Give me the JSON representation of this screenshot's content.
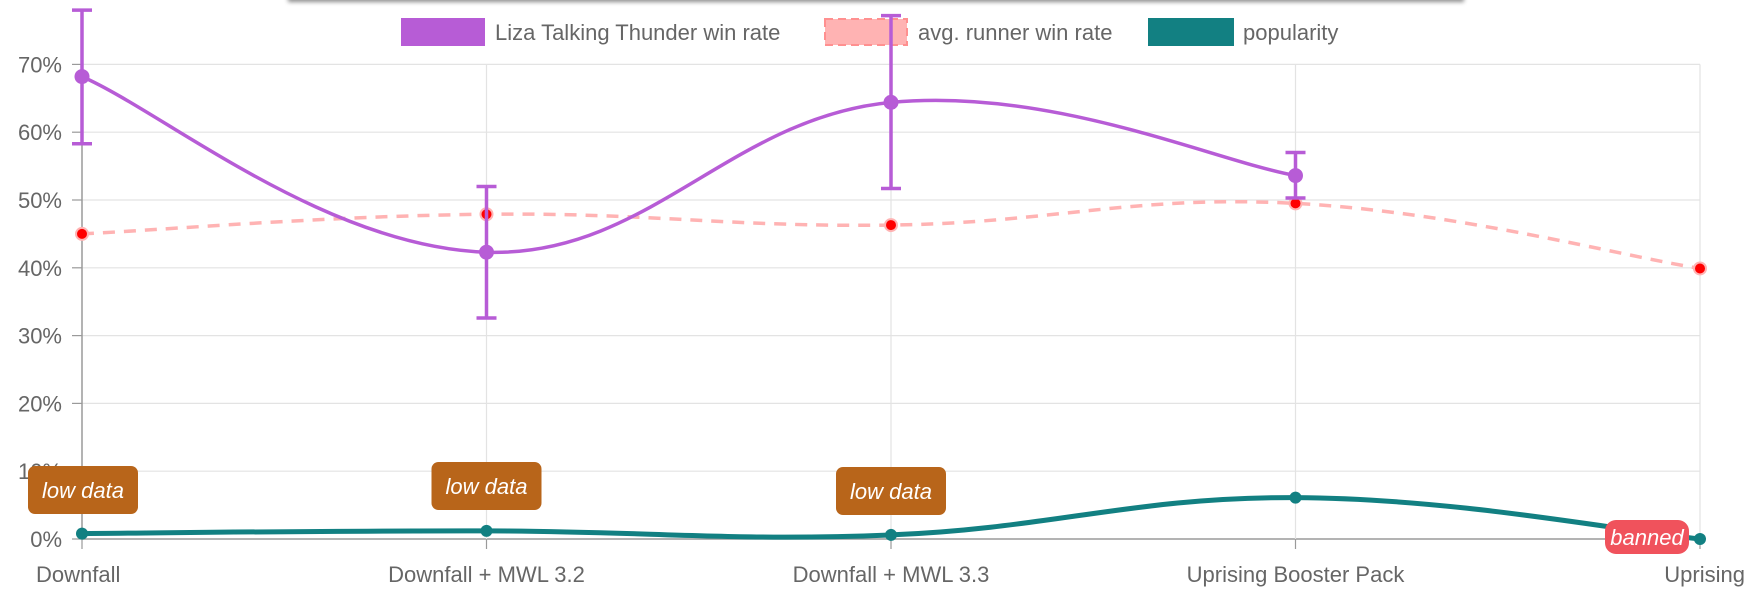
{
  "chart_data": {
    "type": "line",
    "categories": [
      "Downfall",
      "Downfall + MWL 3.2",
      "Downfall + MWL 3.3",
      "Uprising Booster Pack",
      "Uprising"
    ],
    "ylim": [
      0,
      70
    ],
    "y_ticks": [
      "0%",
      "10%",
      "20%",
      "30%",
      "40%",
      "50%",
      "60%",
      "70%"
    ],
    "grid": true,
    "legend_position": "top",
    "series": [
      {
        "name": "Liza Talking Thunder win rate",
        "color": "#b75cd6",
        "values": [
          68.2,
          42.3,
          64.4,
          53.6,
          null
        ],
        "error_low": [
          58.3,
          32.6,
          51.7,
          50.3,
          null
        ],
        "error_high": [
          78.0,
          52.0,
          77.2,
          57.0,
          null
        ]
      },
      {
        "name": "avg. runner win rate",
        "color": "#ffb3b3",
        "point_color": "#ff0000",
        "dashed": true,
        "values": [
          45.0,
          47.9,
          46.3,
          49.5,
          39.9
        ]
      },
      {
        "name": "popularity",
        "color": "#128082",
        "values": [
          0.8,
          1.2,
          0.6,
          6.1,
          0.0
        ]
      }
    ],
    "annotations": [
      {
        "category": "Downfall",
        "text": "low data",
        "color": "#b8651a"
      },
      {
        "category": "Downfall + MWL 3.2",
        "text": "low data",
        "color": "#b8651a"
      },
      {
        "category": "Downfall + MWL 3.3",
        "text": "low data",
        "color": "#b8651a"
      },
      {
        "category": "Uprising",
        "text": "banned",
        "color": "#f0525c"
      }
    ]
  }
}
